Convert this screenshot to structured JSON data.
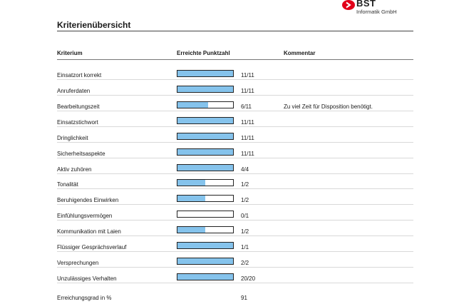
{
  "logo": {
    "name": "BST",
    "subtitle": "Informatik GmbH",
    "accent_color": "#e2001a"
  },
  "title": "Kriterienübersicht",
  "columns": {
    "criterion": "Kriterium",
    "score": "Erreichte Punktzahl",
    "comment": "Kommentar"
  },
  "criteria": [
    {
      "name": "Einsatzort korrekt",
      "score": "11/11",
      "achieved": 11,
      "max": 11,
      "comment": ""
    },
    {
      "name": "Anruferdaten",
      "score": "11/11",
      "achieved": 11,
      "max": 11,
      "comment": ""
    },
    {
      "name": "Bearbeitungszeit",
      "score": "6/11",
      "achieved": 6,
      "max": 11,
      "comment": "Zu viel Zeit für Disposition benötigt."
    },
    {
      "name": "Einsatzstichwort",
      "score": "11/11",
      "achieved": 11,
      "max": 11,
      "comment": ""
    },
    {
      "name": "Dringlichkeit",
      "score": "11/11",
      "achieved": 11,
      "max": 11,
      "comment": ""
    },
    {
      "name": "Sicherheitsaspekte",
      "score": "11/11",
      "achieved": 11,
      "max": 11,
      "comment": ""
    },
    {
      "name": "Aktiv zuhören",
      "score": "4/4",
      "achieved": 4,
      "max": 4,
      "comment": ""
    },
    {
      "name": "Tonalität",
      "score": "1/2",
      "achieved": 1,
      "max": 2,
      "comment": ""
    },
    {
      "name": "Beruhigendes Einwirken",
      "score": "1/2",
      "achieved": 1,
      "max": 2,
      "comment": ""
    },
    {
      "name": "Einfühlungsvermögen",
      "score": "0/1",
      "achieved": 0,
      "max": 1,
      "comment": ""
    },
    {
      "name": "Kommunikation mit Laien",
      "score": "1/2",
      "achieved": 1,
      "max": 2,
      "comment": ""
    },
    {
      "name": "Flüssiger Gesprächsverlauf",
      "score": "1/1",
      "achieved": 1,
      "max": 1,
      "comment": ""
    },
    {
      "name": "Versprechungen",
      "score": "2/2",
      "achieved": 2,
      "max": 2,
      "comment": ""
    },
    {
      "name": "Unzulässiges Verhalten",
      "score": "20/20",
      "achieved": 20,
      "max": 20,
      "comment": ""
    }
  ],
  "summary": {
    "label": "Erreichungsgrad in %",
    "value": "91"
  },
  "colors": {
    "bar_fill": "#85c3ec",
    "bar_border": "#222222"
  }
}
